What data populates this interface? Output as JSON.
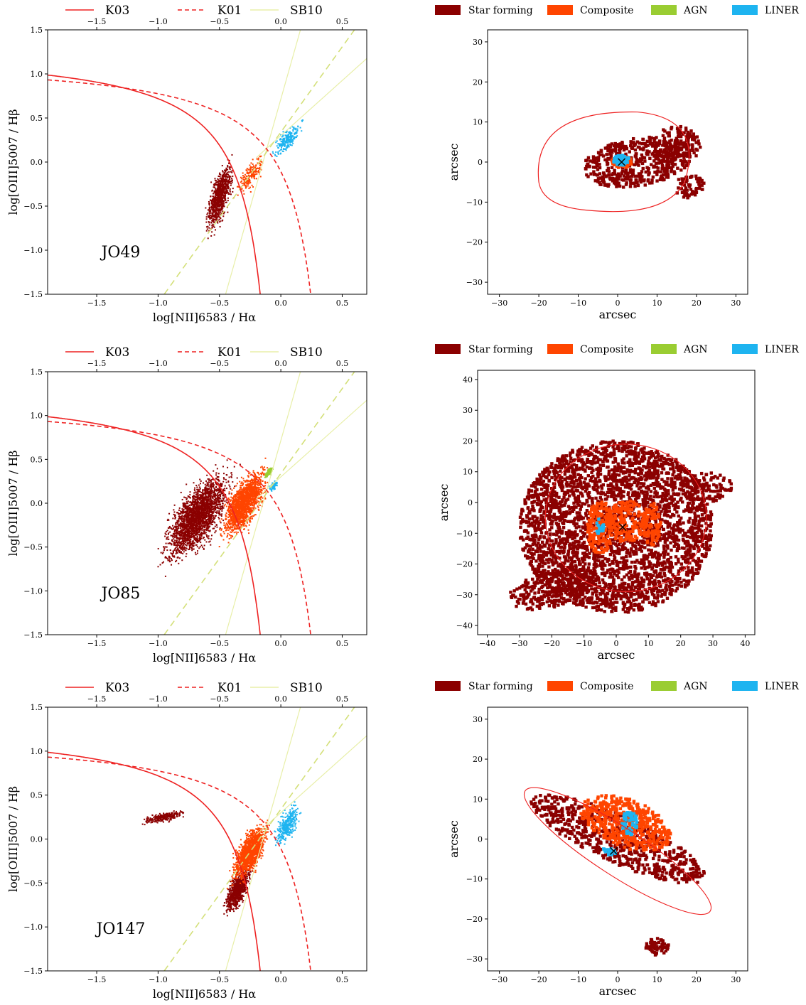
{
  "colors": {
    "star_forming": "#8b0000",
    "composite": "#ff4500",
    "agn": "#9acd32",
    "liner": "#1eb4f0",
    "k03": "#ee2222",
    "k01": "#ee2222",
    "sb10": "#e8efa8",
    "sb10_dashed": "#d4e07a"
  },
  "bpt_legend": {
    "k03": "K03",
    "k01": "K01",
    "sb10": "SB10"
  },
  "map_legend": {
    "star_forming": "Star forming",
    "composite": "Composite",
    "agn": "AGN",
    "liner": "LINER"
  },
  "chart_data": [
    {
      "type": "scatter",
      "galaxy": "JO49",
      "xlabel": "log[NII]6583 / Hα",
      "ylabel": "log[OIII]5007 / Hβ",
      "xlim": [
        -1.9,
        0.7
      ],
      "ylim": [
        -1.5,
        1.5
      ],
      "x_ticks": [
        "−1.5",
        "−1.0",
        "−0.5",
        "0.0",
        "0.5"
      ],
      "y_ticks": [
        "−1.5",
        "−1.0",
        "−0.5",
        "0.0",
        "0.5",
        "1.0",
        "1.5"
      ],
      "clusters": [
        {
          "class": "star_forming",
          "x": [
            -0.65,
            -0.35
          ],
          "y": [
            -0.95,
            0.15
          ],
          "n": 900
        },
        {
          "class": "composite",
          "x": [
            -0.4,
            -0.1
          ],
          "y": [
            -0.45,
            0.15
          ],
          "n": 180
        },
        {
          "class": "liner",
          "x": [
            -0.1,
            0.2
          ],
          "y": [
            0.0,
            0.5
          ],
          "n": 220
        }
      ]
    },
    {
      "type": "image",
      "galaxy": "JO49",
      "xlabel": "arcsec",
      "ylabel": "arcsec",
      "xlim": [
        -33,
        33
      ],
      "ylim": [
        -33,
        33
      ],
      "x_ticks": [
        "−30",
        "−20",
        "−10",
        "0",
        "10",
        "20",
        "30"
      ],
      "y_ticks": [
        "−30",
        "−20",
        "−10",
        "0",
        "10",
        "20",
        "30"
      ],
      "center_marker": [
        1,
        0
      ]
    },
    {
      "type": "scatter",
      "galaxy": "JO85",
      "xlabel": "log[NII]6583 / Hα",
      "ylabel": "log[OIII]5007 / Hβ",
      "xlim": [
        -1.9,
        0.7
      ],
      "ylim": [
        -1.5,
        1.5
      ],
      "x_ticks": [
        "−1.5",
        "−1.0",
        "−0.5",
        "0.0",
        "0.5"
      ],
      "y_ticks": [
        "−1.5",
        "−1.0",
        "−0.5",
        "0.0",
        "0.5",
        "1.0",
        "1.5"
      ],
      "clusters": [
        {
          "class": "star_forming",
          "x": [
            -1.05,
            -0.3
          ],
          "y": [
            -0.85,
            0.55
          ],
          "n": 2500
        },
        {
          "class": "composite",
          "x": [
            -0.55,
            -0.05
          ],
          "y": [
            -0.55,
            0.55
          ],
          "n": 1800
        },
        {
          "class": "agn",
          "x": [
            -0.15,
            -0.05
          ],
          "y": [
            0.25,
            0.45
          ],
          "n": 80
        },
        {
          "class": "liner",
          "x": [
            -0.12,
            0.0
          ],
          "y": [
            0.1,
            0.3
          ],
          "n": 80
        }
      ]
    },
    {
      "type": "image",
      "galaxy": "JO85",
      "xlabel": "arcsec",
      "ylabel": "arcsec",
      "xlim": [
        -43,
        43
      ],
      "ylim": [
        -43,
        43
      ],
      "x_ticks": [
        "−40",
        "−30",
        "−20",
        "−10",
        "0",
        "10",
        "20",
        "30",
        "40"
      ],
      "y_ticks": [
        "−40",
        "−30",
        "−20",
        "−10",
        "0",
        "10",
        "20",
        "30",
        "40"
      ],
      "center_marker": [
        2,
        -8
      ]
    },
    {
      "type": "scatter",
      "galaxy": "JO147",
      "xlabel": "log[NII]6583 / Hα",
      "ylabel": "log[OIII]5007 / Hβ",
      "xlim": [
        -1.9,
        0.7
      ],
      "ylim": [
        -1.5,
        1.5
      ],
      "x_ticks": [
        "−1.5",
        "−1.0",
        "−0.5",
        "0.0",
        "0.5"
      ],
      "y_ticks": [
        "−1.5",
        "−1.0",
        "−0.5",
        "0.0",
        "0.5",
        "1.0",
        "1.5"
      ],
      "clusters": [
        {
          "class": "star_forming",
          "x": [
            -1.2,
            -0.7
          ],
          "y": [
            0.15,
            0.35
          ],
          "n": 250
        },
        {
          "class": "star_forming",
          "x": [
            -0.5,
            -0.2
          ],
          "y": [
            -0.95,
            -0.2
          ],
          "n": 800
        },
        {
          "class": "composite",
          "x": [
            -0.45,
            -0.05
          ],
          "y": [
            -0.6,
            0.3
          ],
          "n": 1500
        },
        {
          "class": "liner",
          "x": [
            -0.1,
            0.2
          ],
          "y": [
            -0.2,
            0.5
          ],
          "n": 350
        }
      ]
    },
    {
      "type": "image",
      "galaxy": "JO147",
      "xlabel": "arcsec",
      "ylabel": "arcsec",
      "xlim": [
        -33,
        33
      ],
      "ylim": [
        -33,
        33
      ],
      "x_ticks": [
        "−30",
        "−20",
        "−10",
        "0",
        "10",
        "20",
        "30"
      ],
      "y_ticks": [
        "−30",
        "−20",
        "−10",
        "0",
        "10",
        "20",
        "30"
      ],
      "center_marker": [
        -1,
        -3
      ]
    }
  ]
}
